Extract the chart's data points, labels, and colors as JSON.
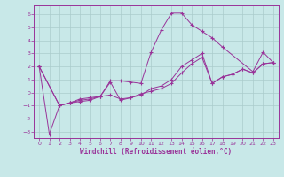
{
  "xlabel": "Windchill (Refroidissement éolien,°C)",
  "background_color": "#c8e8e8",
  "grid_color": "#aacccc",
  "line_color": "#993399",
  "xlim": [
    -0.5,
    23.5
  ],
  "ylim": [
    -3.5,
    6.7
  ],
  "xticks": [
    0,
    1,
    2,
    3,
    4,
    5,
    6,
    7,
    8,
    9,
    10,
    11,
    12,
    13,
    14,
    15,
    16,
    17,
    18,
    19,
    20,
    21,
    22,
    23
  ],
  "yticks": [
    -3,
    -2,
    -1,
    0,
    1,
    2,
    3,
    4,
    5,
    6
  ],
  "line1_x": [
    0,
    1,
    2,
    3,
    4,
    5,
    6,
    7,
    8,
    9,
    10,
    11,
    12,
    13,
    14,
    15,
    16,
    17,
    18,
    21,
    22,
    23
  ],
  "line1_y": [
    2.0,
    -3.2,
    -1.0,
    -0.8,
    -0.7,
    -0.6,
    -0.3,
    0.9,
    0.9,
    0.8,
    0.7,
    3.1,
    4.8,
    6.1,
    6.1,
    5.2,
    4.7,
    4.2,
    3.5,
    1.6,
    3.1,
    2.3
  ],
  "line2_x": [
    0,
    2,
    3,
    4,
    5,
    6,
    7,
    8,
    9,
    10,
    11,
    12,
    13,
    14,
    15,
    16,
    17,
    18,
    19,
    20,
    21,
    22,
    23
  ],
  "line2_y": [
    2.0,
    -1.0,
    -0.8,
    -0.5,
    -0.4,
    -0.3,
    0.8,
    -0.6,
    -0.4,
    -0.2,
    0.3,
    0.5,
    1.0,
    2.0,
    2.5,
    3.0,
    0.7,
    1.2,
    1.4,
    1.8,
    1.5,
    2.2,
    2.3
  ],
  "line3_x": [
    0,
    2,
    3,
    4,
    5,
    6,
    7,
    8,
    9,
    10,
    11,
    12,
    13,
    14,
    15,
    16,
    17,
    18,
    19,
    20,
    21,
    22,
    23
  ],
  "line3_y": [
    2.0,
    -1.0,
    -0.8,
    -0.6,
    -0.5,
    -0.3,
    -0.2,
    -0.5,
    -0.4,
    -0.1,
    0.1,
    0.3,
    0.7,
    1.5,
    2.2,
    2.7,
    0.7,
    1.2,
    1.4,
    1.8,
    1.5,
    2.2,
    2.3
  ]
}
